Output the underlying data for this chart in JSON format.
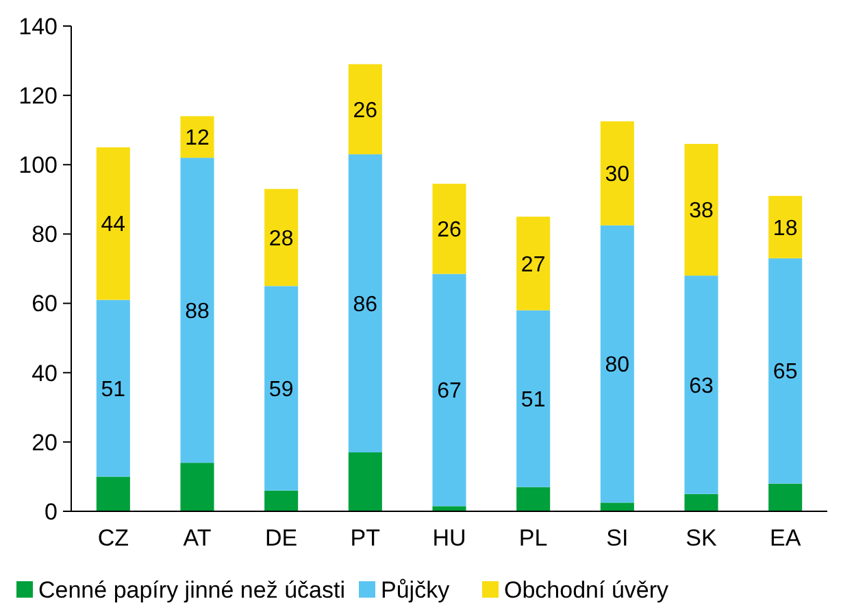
{
  "chart_data": {
    "type": "bar",
    "stacked": true,
    "categories": [
      "CZ",
      "AT",
      "DE",
      "PT",
      "HU",
      "PL",
      "SI",
      "SK",
      "EA"
    ],
    "series": [
      {
        "name": "Cenné papíry jinné než účasti",
        "color": "#00a03c",
        "values": [
          10,
          14,
          6,
          17,
          1.5,
          7,
          2.5,
          5,
          8
        ]
      },
      {
        "name": "Půjčky",
        "color": "#5bc5f2",
        "values": [
          51,
          88,
          59,
          86,
          67,
          51,
          80,
          63,
          65
        ],
        "value_labels": [
          "51",
          "88",
          "59",
          "86",
          "67",
          "51",
          "80",
          "63",
          "65"
        ]
      },
      {
        "name": "Obchodní úvěry",
        "color": "#f8dd12",
        "values": [
          44,
          12,
          28,
          26,
          26,
          27,
          30,
          38,
          18
        ],
        "value_labels": [
          "44",
          "12",
          "28",
          "26",
          "26",
          "27",
          "30",
          "38",
          "18"
        ]
      }
    ],
    "ylim": [
      0,
      140
    ],
    "yticks": [
      0,
      20,
      40,
      60,
      80,
      100,
      120,
      140
    ],
    "grid": false,
    "legend": "bottom"
  }
}
